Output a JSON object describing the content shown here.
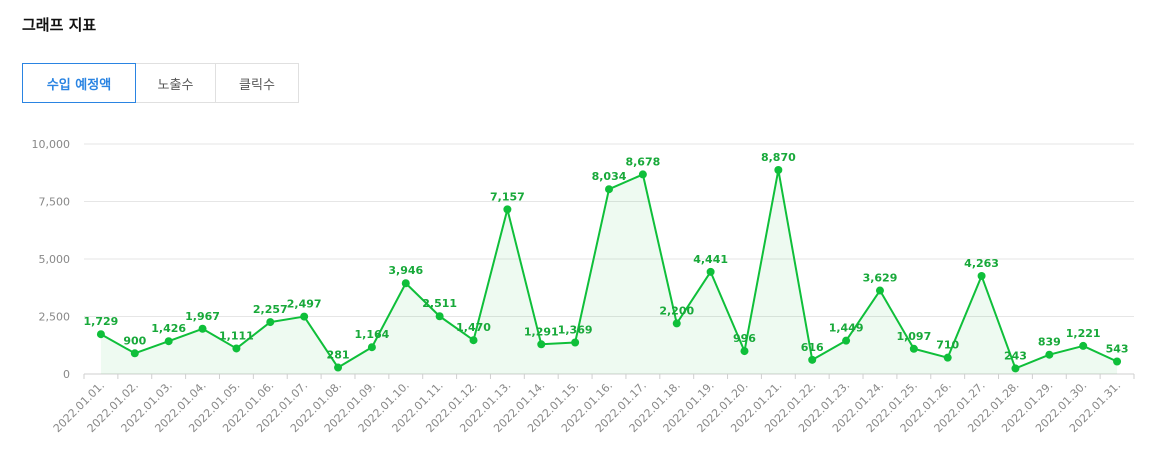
{
  "header": {
    "title": "그래프 지표"
  },
  "tabs": [
    {
      "label": "수입 예정액",
      "active": true
    },
    {
      "label": "노출수",
      "active": false
    },
    {
      "label": "클릭수",
      "active": false
    }
  ],
  "colors": {
    "line": "#0fbf3a",
    "label": "#18a93a",
    "active_tab": "#2a84e2",
    "grid": "#e6e6e6",
    "axis_text": "#888888"
  },
  "chart_data": {
    "type": "area",
    "categories": [
      "2022.01.01.",
      "2022.01.02.",
      "2022.01.03.",
      "2022.01.04.",
      "2022.01.05.",
      "2022.01.06.",
      "2022.01.07.",
      "2022.01.08.",
      "2022.01.09.",
      "2022.01.10.",
      "2022.01.11.",
      "2022.01.12.",
      "2022.01.13.",
      "2022.01.14.",
      "2022.01.15.",
      "2022.01.16.",
      "2022.01.17.",
      "2022.01.18.",
      "2022.01.19.",
      "2022.01.20.",
      "2022.01.21.",
      "2022.01.22.",
      "2022.01.23.",
      "2022.01.24.",
      "2022.01.25.",
      "2022.01.26.",
      "2022.01.27.",
      "2022.01.28.",
      "2022.01.29.",
      "2022.01.30.",
      "2022.01.31."
    ],
    "values": [
      1729,
      900,
      1426,
      1967,
      1111,
      2257,
      2497,
      281,
      1164,
      3946,
      2511,
      1470,
      7157,
      1291,
      1369,
      8034,
      8678,
      2200,
      4441,
      996,
      8870,
      616,
      1449,
      3629,
      1097,
      710,
      4263,
      243,
      839,
      1221,
      543
    ],
    "value_labels": [
      "1,729",
      "900",
      "1,426",
      "1,967",
      "1,111",
      "2,257",
      "2,497",
      "281",
      "1,164",
      "3,946",
      "2,511",
      "1,470",
      "7,157",
      "1,291",
      "1,369",
      "8,034",
      "8,678",
      "2,200",
      "4,441",
      "996",
      "8,870",
      "616",
      "1,449",
      "3,629",
      "1,097",
      "710",
      "4,263",
      "243",
      "839",
      "1,221",
      "543"
    ],
    "yticks": [
      0,
      2500,
      5000,
      7500,
      10000
    ],
    "ytick_labels": [
      "0",
      "2,500",
      "5,000",
      "7,500",
      "10,000"
    ],
    "ylim": [
      0,
      10000
    ],
    "grid": true,
    "legend": "none"
  }
}
